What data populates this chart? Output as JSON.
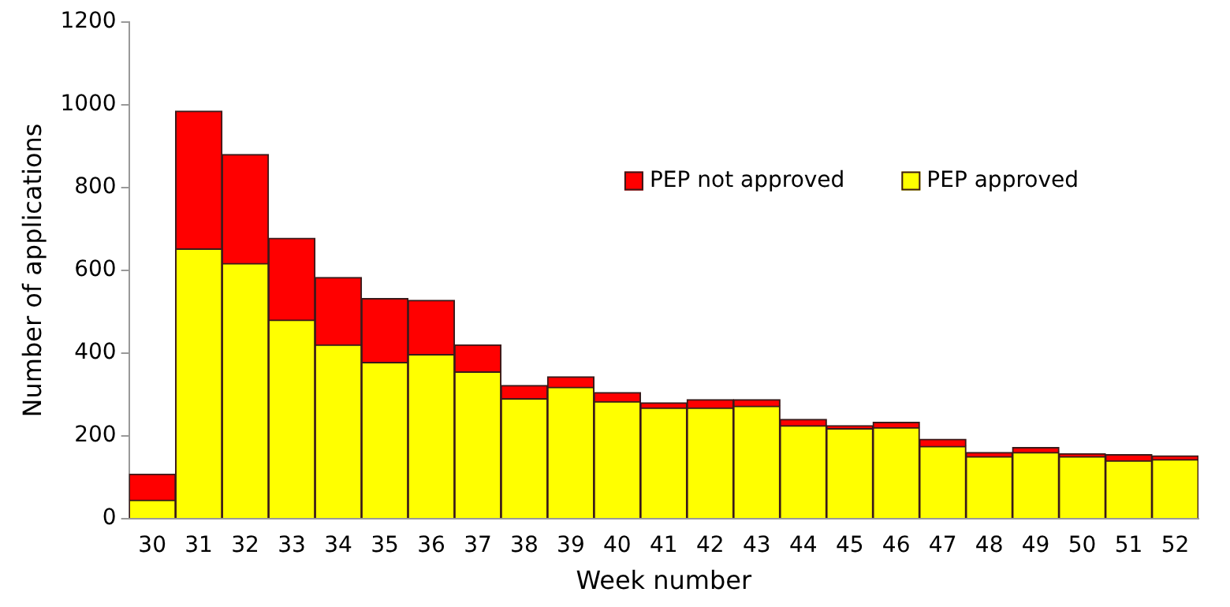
{
  "chart_data": {
    "type": "bar",
    "xlabel": "Week number",
    "ylabel": "Number of applications",
    "categories": [
      "30",
      "31",
      "32",
      "33",
      "34",
      "35",
      "36",
      "37",
      "38",
      "39",
      "40",
      "41",
      "42",
      "43",
      "44",
      "45",
      "46",
      "47",
      "48",
      "49",
      "50",
      "51",
      "52"
    ],
    "stacked": true,
    "ylim": [
      0,
      1200
    ],
    "yticks": [
      0,
      200,
      400,
      600,
      800,
      1000,
      1200
    ],
    "legend": "top right",
    "series": [
      {
        "name": "PEP approved",
        "color": "#ffff00",
        "values": [
          45,
          652,
          617,
          480,
          420,
          378,
          397,
          355,
          290,
          318,
          283,
          268,
          268,
          272,
          225,
          218,
          220,
          175,
          150,
          160,
          150,
          140,
          143
        ]
      },
      {
        "name": "PEP not approved",
        "color": "#ff0000",
        "values": [
          63,
          333,
          263,
          198,
          163,
          154,
          131,
          65,
          32,
          25,
          22,
          12,
          20,
          16,
          15,
          7,
          13,
          17,
          10,
          12,
          7,
          15,
          9
        ]
      }
    ]
  }
}
